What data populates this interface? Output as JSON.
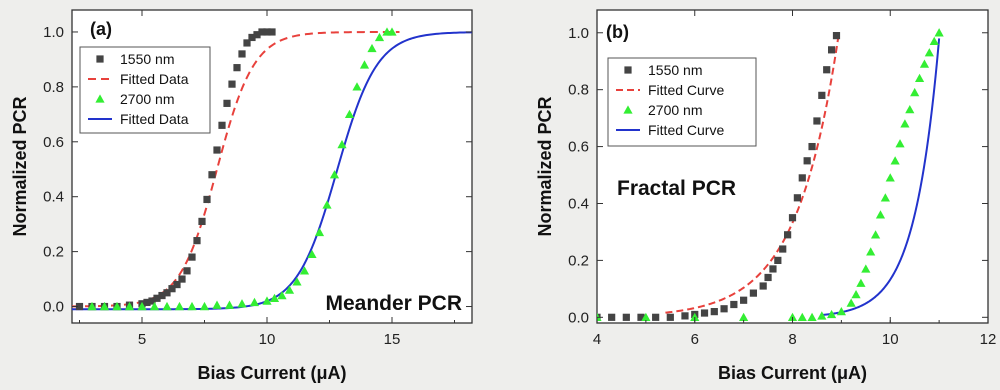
{
  "chart_data": [
    {
      "panel": "(a)",
      "type": "scatter",
      "xlabel": "Bias Current (μA)",
      "ylabel": "Normalized PCR",
      "xlim": [
        2.2,
        18.2
      ],
      "ylim": [
        -0.06,
        1.08
      ],
      "xticks": [
        5,
        10,
        15
      ],
      "yticks": [
        0.0,
        0.2,
        0.4,
        0.6,
        0.8,
        1.0
      ],
      "ytick_labels": [
        "0.0",
        "0.2",
        "0.4",
        "0.6",
        "0.8",
        "1.0"
      ],
      "annotation": "Meander PCR",
      "legend_position": "top-left",
      "grid": false,
      "series": [
        {
          "name": "1550 nm",
          "kind": "marker",
          "marker": "square",
          "color": "#444444",
          "x": [
            2.5,
            3.0,
            3.5,
            4.0,
            4.5,
            5.0,
            5.2,
            5.4,
            5.6,
            5.8,
            6.0,
            6.2,
            6.4,
            6.6,
            6.8,
            7.0,
            7.2,
            7.4,
            7.6,
            7.8,
            8.0,
            8.2,
            8.4,
            8.6,
            8.8,
            9.0,
            9.2,
            9.4,
            9.6,
            9.8,
            10.0,
            10.2
          ],
          "y": [
            0.0,
            0.0,
            0.0,
            0.0,
            0.005,
            0.01,
            0.015,
            0.02,
            0.03,
            0.04,
            0.05,
            0.065,
            0.08,
            0.1,
            0.13,
            0.18,
            0.24,
            0.31,
            0.39,
            0.48,
            0.57,
            0.66,
            0.74,
            0.81,
            0.87,
            0.92,
            0.96,
            0.98,
            0.99,
            1.0,
            1.0,
            1.0
          ]
        },
        {
          "name": "Fitted Data",
          "kind": "line",
          "dash": "8,5",
          "color": "#e8413c",
          "model": {
            "type": "sigmoid",
            "x0": 8.0,
            "k": 1.35,
            "ymin": 0.0,
            "ymax": 1.0,
            "x_range": [
              2.2,
              15.3
            ]
          }
        },
        {
          "name": "2700 nm",
          "kind": "marker",
          "marker": "triangle",
          "color": "#33ee33",
          "x": [
            3.0,
            3.5,
            4.0,
            4.5,
            5.0,
            5.5,
            6.0,
            6.5,
            7.0,
            7.5,
            8.0,
            8.5,
            9.0,
            9.5,
            10.0,
            10.3,
            10.6,
            10.9,
            11.2,
            11.5,
            11.8,
            12.1,
            12.4,
            12.7,
            13.0,
            13.3,
            13.6,
            13.9,
            14.2,
            14.5,
            14.8,
            15.0
          ],
          "y": [
            0.0,
            0.0,
            0.0,
            0.0,
            0.0,
            0.0,
            0.0,
            0.0,
            0.0,
            0.0,
            0.005,
            0.005,
            0.01,
            0.015,
            0.02,
            0.03,
            0.04,
            0.06,
            0.09,
            0.13,
            0.19,
            0.27,
            0.37,
            0.48,
            0.59,
            0.7,
            0.8,
            0.88,
            0.94,
            0.98,
            1.0,
            1.0
          ]
        },
        {
          "name": "Fitted Data",
          "kind": "line",
          "dash": "",
          "color": "#2233cc",
          "model": {
            "type": "sigmoid",
            "x0": 12.8,
            "k": 1.25,
            "ymin": -0.01,
            "ymax": 1.0,
            "x_range": [
              2.2,
              18.2
            ]
          }
        }
      ]
    },
    {
      "panel": "(b)",
      "type": "scatter",
      "xlabel": "Bias Current (μA)",
      "ylabel": "Normalized PCR",
      "xlim": [
        4,
        12
      ],
      "ylim": [
        -0.02,
        1.08
      ],
      "xticks": [
        4,
        6,
        8,
        10,
        12
      ],
      "yticks": [
        0.0,
        0.2,
        0.4,
        0.6,
        0.8,
        1.0
      ],
      "ytick_labels": [
        "0.0",
        "0.2",
        "0.4",
        "0.6",
        "0.8",
        "1.0"
      ],
      "annotation": "Fractal PCR",
      "legend_position": "top-left",
      "grid": false,
      "series": [
        {
          "name": "1550 nm",
          "kind": "marker",
          "marker": "square",
          "color": "#444444",
          "x": [
            4.0,
            4.3,
            4.6,
            4.9,
            5.2,
            5.5,
            5.8,
            6.0,
            6.2,
            6.4,
            6.6,
            6.8,
            7.0,
            7.2,
            7.4,
            7.5,
            7.6,
            7.7,
            7.8,
            7.9,
            8.0,
            8.1,
            8.2,
            8.3,
            8.4,
            8.5,
            8.6,
            8.7,
            8.8,
            8.9
          ],
          "y": [
            0.0,
            0.0,
            0.0,
            0.0,
            0.0,
            0.0,
            0.005,
            0.01,
            0.015,
            0.02,
            0.03,
            0.045,
            0.06,
            0.085,
            0.11,
            0.14,
            0.17,
            0.2,
            0.24,
            0.29,
            0.35,
            0.42,
            0.49,
            0.55,
            0.6,
            0.69,
            0.78,
            0.87,
            0.94,
            0.99
          ]
        },
        {
          "name": "Fitted Curve",
          "kind": "line",
          "dash": "7,4",
          "color": "#e8413c",
          "model": {
            "type": "exp",
            "x_start": 5.4,
            "x_end": 8.95,
            "scale": 1.0,
            "a": 1.16
          }
        },
        {
          "name": "2700 nm",
          "kind": "marker",
          "marker": "triangle",
          "color": "#33ee33",
          "x": [
            4.0,
            5.0,
            6.0,
            7.0,
            8.0,
            8.2,
            8.4,
            8.6,
            8.8,
            9.0,
            9.2,
            9.3,
            9.4,
            9.5,
            9.6,
            9.7,
            9.8,
            9.9,
            10.0,
            10.1,
            10.2,
            10.3,
            10.4,
            10.5,
            10.6,
            10.7,
            10.8,
            10.9,
            11.0
          ],
          "y": [
            0.0,
            0.0,
            0.0,
            0.0,
            0.0,
            0.0,
            0.0,
            0.005,
            0.01,
            0.02,
            0.05,
            0.08,
            0.12,
            0.17,
            0.23,
            0.29,
            0.36,
            0.42,
            0.49,
            0.55,
            0.61,
            0.68,
            0.73,
            0.79,
            0.84,
            0.89,
            0.93,
            0.97,
            1.0
          ]
        },
        {
          "name": "Fitted Curve",
          "kind": "line",
          "dash": "",
          "color": "#2233cc",
          "model": {
            "type": "exp",
            "x_start": 8.6,
            "x_end": 11.0,
            "scale": 0.98,
            "a": 2.0
          }
        }
      ]
    }
  ]
}
